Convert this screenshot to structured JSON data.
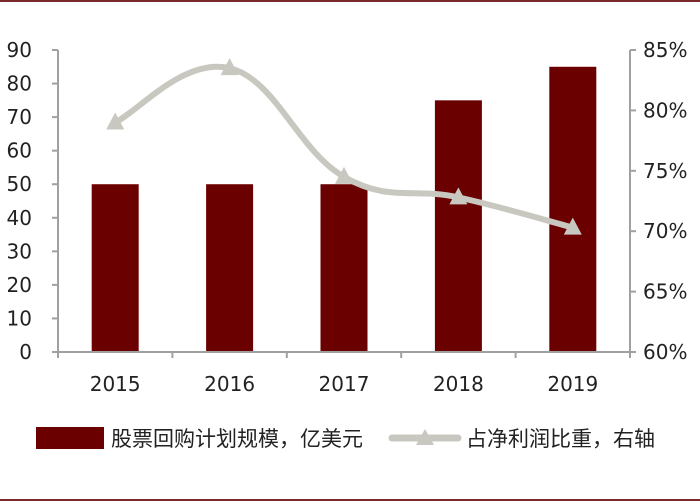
{
  "chart_data": {
    "type": "bar+line",
    "categories": [
      "2015",
      "2016",
      "2017",
      "2018",
      "2019"
    ],
    "series": [
      {
        "name": "股票回购计划规模，亿美元",
        "type": "bar",
        "axis": "left",
        "color": "#6b0000",
        "values": [
          50,
          50,
          50,
          75,
          85
        ]
      },
      {
        "name": "占净利润比重，右轴",
        "type": "line",
        "axis": "right",
        "color": "#c8c8c0",
        "marker": "triangle",
        "values": [
          79,
          83.5,
          74.5,
          72.8,
          70.3
        ]
      }
    ],
    "y_left": {
      "ylim": [
        0,
        90
      ],
      "ticks": [
        "0",
        "10",
        "20",
        "30",
        "40",
        "50",
        "60",
        "70",
        "80",
        "90"
      ]
    },
    "y_right": {
      "ylim": [
        60,
        85
      ],
      "ticks": [
        "60%",
        "65%",
        "70%",
        "75%",
        "80%",
        "85%"
      ]
    },
    "grid": false,
    "legend_position": "bottom"
  }
}
